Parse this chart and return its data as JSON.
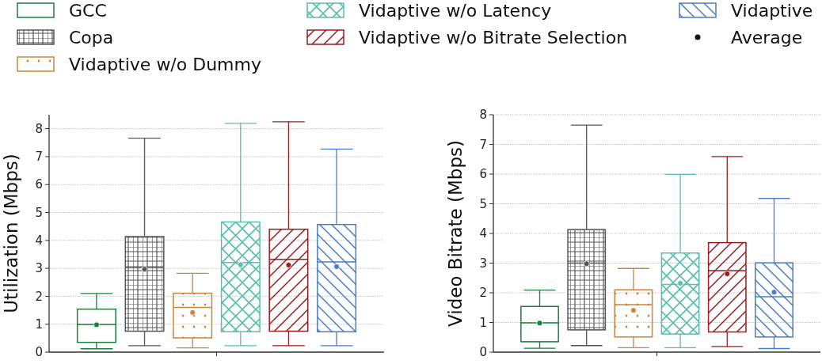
{
  "chart_data": [
    {
      "type": "box",
      "ylabel": "Utilization (Mbps)",
      "categories": [
        null
      ],
      "ylim": [
        0,
        8.5
      ],
      "yticks": [
        0,
        1,
        2,
        3,
        4,
        5,
        6,
        7,
        8
      ],
      "grid": "y",
      "legend": "top",
      "annotations": [
        "Average"
      ],
      "series": [
        {
          "name": "GCC",
          "color": "#1a7f3c",
          "boxes": [
            {
              "low": 0.12,
              "q1": 0.35,
              "median": 0.99,
              "q3": 1.54,
              "high": 2.1,
              "mean": 0.98
            }
          ]
        },
        {
          "name": "Copa",
          "color": "#555555",
          "boxes": [
            {
              "low": 0.23,
              "q1": 0.75,
              "median": 3.03,
              "q3": 4.14,
              "high": 7.66,
              "mean": 2.97
            }
          ]
        },
        {
          "name": "Vidaptive w/o Dummy",
          "color": "#c8873a",
          "boxes": [
            {
              "low": 0.15,
              "q1": 0.51,
              "median": 1.6,
              "q3": 2.11,
              "high": 2.82,
              "mean": 1.42
            }
          ]
        },
        {
          "name": "Vidaptive w/o Latency",
          "color": "#5bbfad",
          "boxes": [
            {
              "low": 0.23,
              "q1": 0.73,
              "median": 3.21,
              "q3": 4.66,
              "high": 8.19,
              "mean": 3.13
            }
          ]
        },
        {
          "name": "Vidaptive w/o Bitrate Selection",
          "color": "#9b1c1c",
          "boxes": [
            {
              "low": 0.23,
              "q1": 0.75,
              "median": 3.32,
              "q3": 4.4,
              "high": 8.25,
              "mean": 3.12
            }
          ]
        },
        {
          "name": "Vidaptive",
          "color": "#4a7cc7",
          "boxes": [
            {
              "low": 0.23,
              "q1": 0.73,
              "median": 3.23,
              "q3": 4.57,
              "high": 7.27,
              "mean": 3.06
            }
          ]
        }
      ]
    },
    {
      "type": "box",
      "ylabel": "Video Bitrate (Mbps)",
      "categories": [
        null
      ],
      "ylim": [
        0,
        8
      ],
      "yticks": [
        0,
        1,
        2,
        3,
        4,
        5,
        6,
        7,
        8
      ],
      "grid": "y",
      "series": [
        {
          "color": "#1a7f3c",
          "boxes": [
            {
              "low": 0.13,
              "q1": 0.35,
              "median": 0.99,
              "q3": 1.54,
              "high": 2.09,
              "mean": 0.98
            }
          ]
        },
        {
          "color": "#555555",
          "boxes": [
            {
              "low": 0.22,
              "q1": 0.75,
              "median": 3.0,
              "q3": 4.13,
              "high": 7.65,
              "mean": 2.98
            }
          ]
        },
        {
          "color": "#c8873a",
          "boxes": [
            {
              "low": 0.15,
              "q1": 0.51,
              "median": 1.6,
              "q3": 2.1,
              "high": 2.82,
              "mean": 1.41
            }
          ]
        },
        {
          "color": "#5bbfad",
          "boxes": [
            {
              "low": 0.15,
              "q1": 0.61,
              "median": 2.28,
              "q3": 3.34,
              "high": 5.99,
              "mean": 2.32
            }
          ]
        },
        {
          "color": "#9b1c1c",
          "boxes": [
            {
              "low": 0.19,
              "q1": 0.68,
              "median": 2.75,
              "q3": 3.69,
              "high": 6.59,
              "mean": 2.64
            }
          ]
        },
        {
          "color": "#4a7cc7",
          "boxes": [
            {
              "low": 0.12,
              "q1": 0.51,
              "median": 1.87,
              "q3": 3.01,
              "high": 5.18,
              "mean": 2.02
            }
          ]
        }
      ]
    }
  ]
}
